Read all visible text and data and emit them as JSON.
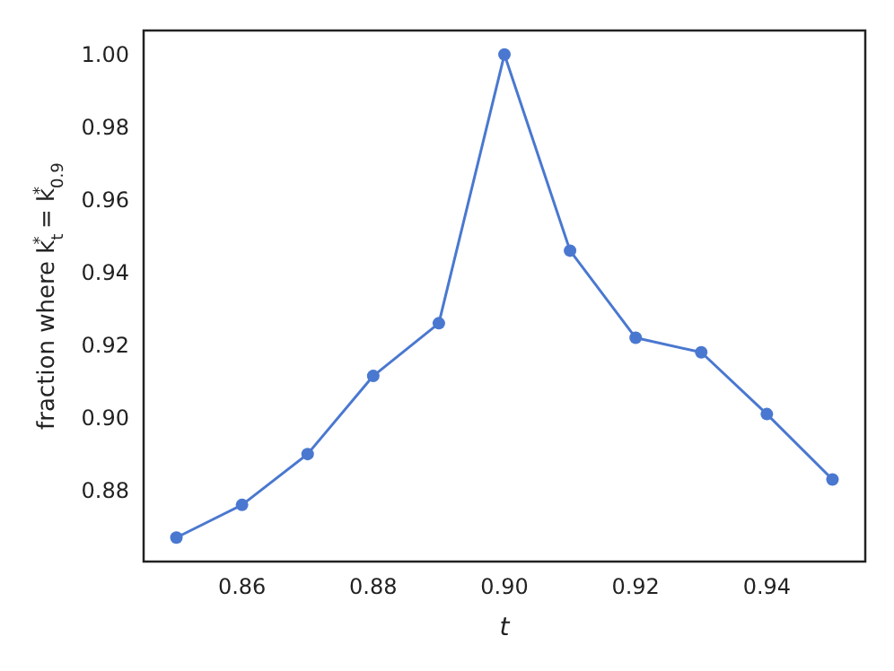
{
  "chart_data": {
    "type": "line",
    "xlabel": "t",
    "ylabel": "fraction where k$_{t}$$^{*}$ = k$_{0.9}$$^{*}$",
    "x": [
      0.85,
      0.86,
      0.87,
      0.88,
      0.89,
      0.9,
      0.91,
      0.92,
      0.93,
      0.94,
      0.95
    ],
    "series": [
      {
        "color": "#4a78d0",
        "values": [
          0.867,
          0.876,
          0.89,
          0.9115,
          0.926,
          1.0,
          0.946,
          0.922,
          0.918,
          0.901,
          0.883
        ]
      }
    ],
    "xlim": [
      0.845,
      0.955
    ],
    "ylim": [
      0.8604,
      1.0066
    ],
    "xticks": [
      {
        "value": 0.86,
        "label": "0.86"
      },
      {
        "value": 0.88,
        "label": "0.88"
      },
      {
        "value": 0.9,
        "label": "0.90"
      },
      {
        "value": 0.92,
        "label": "0.92"
      },
      {
        "value": 0.94,
        "label": "0.94"
      }
    ],
    "yticks": [
      {
        "value": 0.88,
        "label": "0.88"
      },
      {
        "value": 0.9,
        "label": "0.90"
      },
      {
        "value": 0.92,
        "label": "0.92"
      },
      {
        "value": 0.94,
        "label": "0.94"
      },
      {
        "value": 0.96,
        "label": "0.96"
      },
      {
        "value": 0.98,
        "label": "0.98"
      },
      {
        "value": 1.0,
        "label": "1.00"
      }
    ],
    "grid": false,
    "marker": "circle",
    "line_style": "solid"
  }
}
